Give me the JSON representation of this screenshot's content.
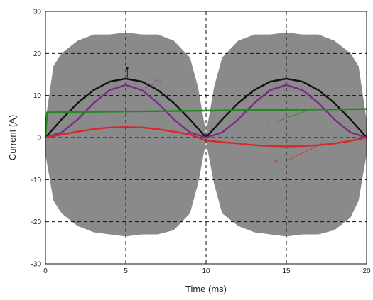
{
  "colors": {
    "envelope": "#8a8a8a",
    "black_series": "#111111",
    "purple_series": "#7b2c86",
    "green_series": "#1f8a1f",
    "red_series": "#d42a2a",
    "grid": "#111111",
    "background": "#ffffff"
  },
  "chart_data": {
    "type": "line",
    "title": "",
    "xlabel": "Time (ms)",
    "ylabel": "Current (A)",
    "xlim": [
      0,
      20
    ],
    "ylim": [
      -30,
      30
    ],
    "x_ticks": [
      0,
      5,
      10,
      15,
      20
    ],
    "y_ticks": [
      -30,
      -20,
      -10,
      0,
      10,
      20,
      30
    ],
    "grid": "dashed",
    "annotations": [
      "i - i",
      "i",
      "iM"
    ],
    "envelope": {
      "x": [
        0,
        0.5,
        1,
        2,
        3,
        4,
        5,
        6,
        7,
        8,
        9,
        9.5,
        10,
        10.5,
        11,
        12,
        13,
        14,
        15,
        16,
        17,
        18,
        19,
        19.5,
        20
      ],
      "upper": [
        4,
        17,
        20,
        23,
        24.5,
        24.5,
        25,
        24.5,
        24.5,
        23,
        19,
        12,
        1,
        12,
        19,
        23,
        24.5,
        24.5,
        25,
        24.5,
        24.5,
        23,
        20,
        17,
        4
      ],
      "lower": [
        -4,
        -15,
        -18,
        -21,
        -22.5,
        -23,
        -23.5,
        -23,
        -23,
        -22,
        -18,
        -11,
        -1,
        -11,
        -18,
        -21,
        -22.5,
        -23,
        -23.5,
        -23,
        -23,
        -22,
        -19,
        -15,
        -4
      ]
    },
    "series": [
      {
        "color": "#111111",
        "x": [
          0,
          1,
          2,
          3,
          4,
          5,
          6,
          7,
          8,
          9,
          10,
          11,
          12,
          13,
          14,
          15,
          16,
          17,
          18,
          19,
          20
        ],
        "y": [
          0,
          4.3,
          8.2,
          11.3,
          13.3,
          14,
          13.3,
          11.3,
          8.2,
          4.3,
          0,
          4.3,
          8.2,
          11.3,
          13.3,
          14,
          13.3,
          11.3,
          8.2,
          4.3,
          0
        ]
      },
      {
        "color": "#7b2c86",
        "x": [
          0,
          1,
          2,
          3,
          4,
          5,
          6,
          7,
          8,
          9,
          10,
          11,
          12,
          13,
          14,
          15,
          16,
          17,
          18,
          19,
          20
        ],
        "y": [
          0,
          1.2,
          4.3,
          8.2,
          11.3,
          12.5,
          11.3,
          8.2,
          4.3,
          1.2,
          0,
          1.2,
          4.3,
          8.2,
          11.3,
          12.5,
          11.3,
          8.2,
          4.3,
          1.2,
          0
        ]
      },
      {
        "color": "#1f8a1f",
        "x": [
          0,
          0.1,
          2,
          5,
          8,
          10,
          12,
          15,
          18,
          20
        ],
        "y": [
          0,
          6,
          6.1,
          6.2,
          6.3,
          6.4,
          6.5,
          6.6,
          6.7,
          6.8
        ]
      },
      {
        "color": "#d42a2a",
        "x": [
          0,
          1,
          2,
          3,
          4,
          5,
          6,
          7,
          8,
          9,
          10,
          11,
          12,
          13,
          14,
          15,
          16,
          17,
          18,
          19,
          20
        ],
        "y": [
          0,
          0.7,
          1.4,
          2.0,
          2.4,
          2.5,
          2.4,
          2.0,
          1.4,
          0.7,
          -0.7,
          -1.1,
          -1.4,
          -1.8,
          -2.0,
          -2.1,
          -2.0,
          -1.8,
          -1.4,
          -0.8,
          0
        ]
      }
    ]
  }
}
